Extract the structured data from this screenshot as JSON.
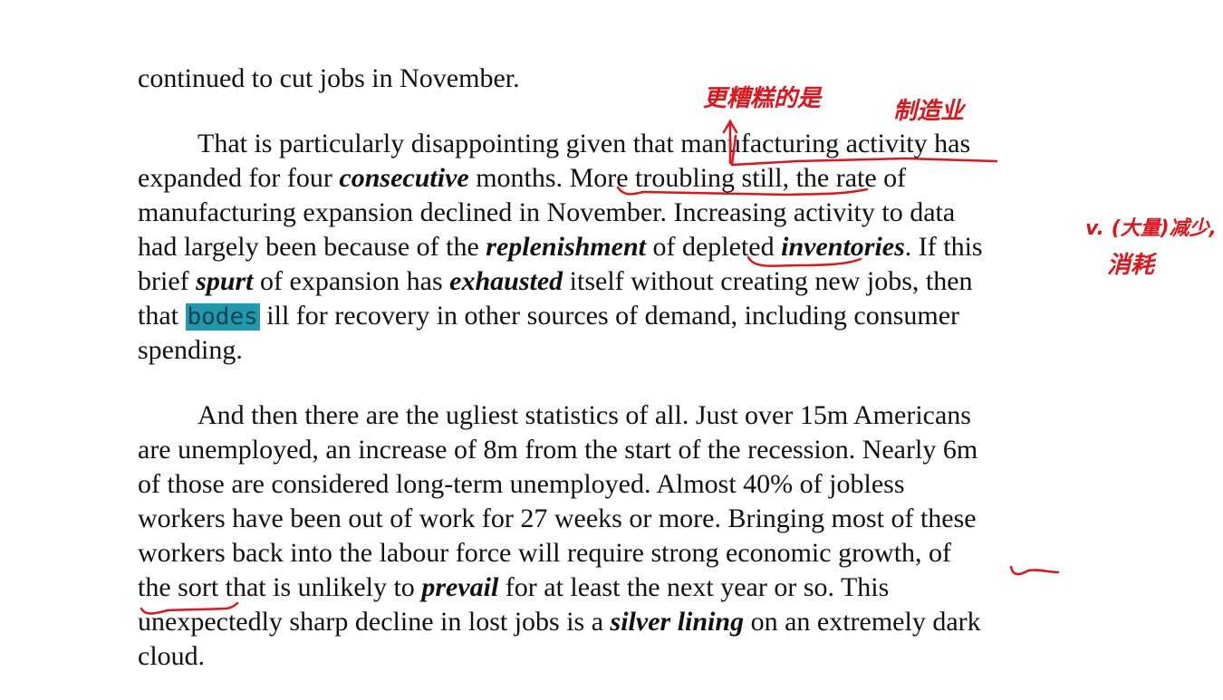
{
  "text": {
    "line1": "continued to cut jobs in November.",
    "p1": {
      "l1a": "That is particularly disappointing given that ",
      "l1b": "manufacturing activity",
      "l1c": " has",
      "l2a": "expanded for four ",
      "l2b": "consecutive",
      "l2c": " months. ",
      "l2d": "More troubling still,",
      "l2e": " the rate of",
      "l3": "manufacturing expansion declined in November. Increasing activity to data",
      "l4a": "had largely been because of the ",
      "l4b": "replenishment",
      "l4c": " of ",
      "l4d": "depleted",
      "l4e": " ",
      "l4f": "inventories",
      "l4g": ". If this",
      "l5a": "brief ",
      "l5b": "spurt",
      "l5c": " of expansion has ",
      "l5d": "exhausted",
      "l5e": " itself without creating new jobs, then",
      "l6a": "that ",
      "l6b": "bodes",
      "l6c": "   ill for recovery in other sources of demand, including consumer",
      "l7": "spending."
    },
    "p2": {
      "l1": "And then there are the ugliest statistics of all. Just over 15m Americans",
      "l2": "are unemployed, an increase of 8m from the start of the recession. Nearly 6m",
      "l3": "of those are considered long-term unemployed. Almost 40% of jobless",
      "l4": "workers have been out of work for 27 weeks or more. Bringing most of these",
      "l5": "workers back into the labour force will require strong economic growth, of",
      "l6a": "the sort",
      "l6b": " that is unlikely to ",
      "l6c": "prevail",
      "l6d": " for at least the next year or so. This",
      "l7a": "unexpectedly sharp decline in lost jobs is a ",
      "l7b": "silver lining",
      "l7c": " on an extremely dark",
      "l8": "cloud."
    }
  },
  "annotations": {
    "more_troubling": "更糟糕的是",
    "manufacturing": "制造业",
    "depleted_1": "v. (大量)减少,",
    "depleted_2": "消耗"
  },
  "colors": {
    "ink": "#e0141b",
    "highlight": "#1e9aae"
  }
}
